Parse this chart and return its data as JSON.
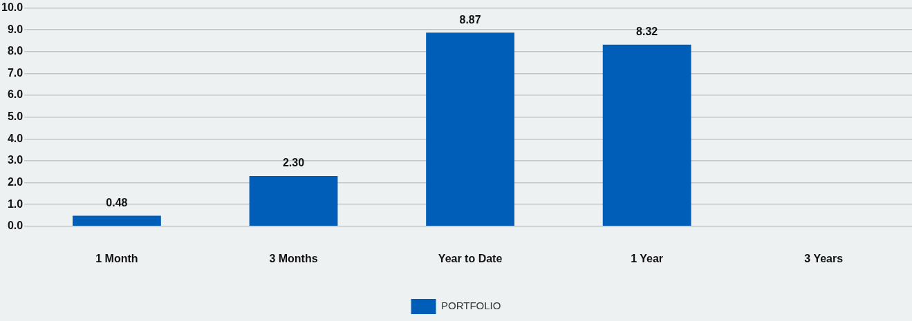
{
  "chart_data": {
    "type": "bar",
    "categories": [
      "1 Month",
      "3 Months",
      "Year to Date",
      "1 Year",
      "3 Years"
    ],
    "series": [
      {
        "name": "PORTFOLIO",
        "color": "#005eb8",
        "values": [
          0.48,
          2.3,
          8.87,
          8.32,
          null
        ],
        "value_labels": [
          "0.48",
          "2.30",
          "8.87",
          "8.32",
          null
        ]
      }
    ],
    "ylim": [
      0,
      10
    ],
    "yticks": [
      {
        "value": 0,
        "label": "0.0"
      },
      {
        "value": 1,
        "label": "1.0"
      },
      {
        "value": 2,
        "label": "2.0"
      },
      {
        "value": 3,
        "label": "3.0"
      },
      {
        "value": 4,
        "label": "4.0"
      },
      {
        "value": 5,
        "label": "5.0"
      },
      {
        "value": 6,
        "label": "6.0"
      },
      {
        "value": 7,
        "label": "7.0"
      },
      {
        "value": 8,
        "label": "8.0"
      },
      {
        "value": 9,
        "label": "9.0"
      },
      {
        "value": 10,
        "label": "10.0"
      }
    ],
    "grid": "y",
    "legend": "bottom"
  }
}
